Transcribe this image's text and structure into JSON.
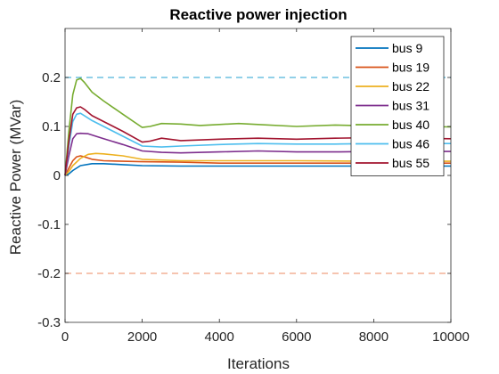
{
  "chart_data": {
    "type": "line",
    "title": "Reactive power injection",
    "xlabel": "Iterations",
    "ylabel": "Reactive Power (MVar)",
    "xlim": [
      0,
      10000
    ],
    "ylim": [
      -0.3,
      0.3
    ],
    "xticks": [
      0,
      2000,
      4000,
      6000,
      8000,
      10000
    ],
    "xtick_labels": [
      "0",
      "2000",
      "4000",
      "6000",
      "8000",
      "10000"
    ],
    "yticks": [
      -0.3,
      -0.2,
      -0.1,
      0,
      0.1,
      0.2
    ],
    "ytick_labels": [
      "-0.3",
      "-0.2",
      "-0.1",
      "0",
      "0.1",
      "0.2"
    ],
    "grid": false,
    "legend_position": "top-right",
    "reference_lines": [
      {
        "y": 0.2,
        "color": "#4fb3d9",
        "style": "dashed"
      },
      {
        "y": -0.2,
        "color": "#f0a080",
        "style": "dashed"
      }
    ],
    "series": [
      {
        "name": "bus 9",
        "color": "#0072BD",
        "x": [
          0,
          100,
          200,
          400,
          700,
          1000,
          1500,
          2000,
          3000,
          4000,
          6000,
          8000,
          10000
        ],
        "y": [
          0,
          0.003,
          0.01,
          0.02,
          0.024,
          0.024,
          0.022,
          0.02,
          0.019,
          0.019,
          0.019,
          0.019,
          0.019
        ]
      },
      {
        "name": "bus 19",
        "color": "#D95319",
        "x": [
          0,
          100,
          200,
          300,
          400,
          500,
          700,
          1000,
          2000,
          3000,
          4000,
          6000,
          8000,
          10000
        ],
        "y": [
          0,
          0.015,
          0.03,
          0.038,
          0.04,
          0.038,
          0.033,
          0.03,
          0.028,
          0.027,
          0.025,
          0.025,
          0.025,
          0.025
        ]
      },
      {
        "name": "bus 22",
        "color": "#EDB120",
        "x": [
          0,
          100,
          200,
          400,
          600,
          800,
          1000,
          1500,
          2000,
          3000,
          4000,
          6000,
          8000,
          10000
        ],
        "y": [
          0,
          0.008,
          0.02,
          0.035,
          0.043,
          0.045,
          0.044,
          0.04,
          0.033,
          0.03,
          0.03,
          0.03,
          0.029,
          0.029
        ]
      },
      {
        "name": "bus 31",
        "color": "#7E2F8E",
        "x": [
          0,
          100,
          200,
          300,
          400,
          600,
          800,
          1000,
          1500,
          2000,
          2500,
          3000,
          4000,
          5000,
          6000,
          7000,
          8000,
          9000,
          10000
        ],
        "y": [
          0,
          0.04,
          0.075,
          0.085,
          0.086,
          0.085,
          0.08,
          0.075,
          0.063,
          0.05,
          0.047,
          0.046,
          0.048,
          0.05,
          0.048,
          0.048,
          0.049,
          0.049,
          0.049
        ]
      },
      {
        "name": "bus 40",
        "color": "#77AC30",
        "x": [
          0,
          100,
          200,
          300,
          400,
          500,
          700,
          1000,
          1500,
          2000,
          2200,
          2500,
          3000,
          3500,
          4000,
          4500,
          5000,
          6000,
          7000,
          8000,
          9000,
          10000
        ],
        "y": [
          0,
          0.09,
          0.165,
          0.195,
          0.198,
          0.19,
          0.17,
          0.152,
          0.125,
          0.098,
          0.1,
          0.106,
          0.105,
          0.102,
          0.104,
          0.106,
          0.104,
          0.1,
          0.103,
          0.101,
          0.1,
          0.099
        ]
      },
      {
        "name": "bus 46",
        "color": "#4DBEEE",
        "x": [
          0,
          100,
          200,
          300,
          400,
          500,
          700,
          1000,
          1500,
          2000,
          2500,
          3000,
          4000,
          5000,
          6000,
          7000,
          8000,
          9000,
          10000
        ],
        "y": [
          0,
          0.06,
          0.11,
          0.125,
          0.127,
          0.122,
          0.112,
          0.1,
          0.08,
          0.06,
          0.058,
          0.06,
          0.063,
          0.065,
          0.064,
          0.064,
          0.065,
          0.065,
          0.065
        ]
      },
      {
        "name": "bus 55",
        "color": "#A2142F",
        "x": [
          0,
          100,
          200,
          300,
          400,
          500,
          700,
          1000,
          1500,
          2000,
          2200,
          2500,
          3000,
          4000,
          5000,
          6000,
          7000,
          8000,
          9000,
          10000
        ],
        "y": [
          0,
          0.07,
          0.125,
          0.138,
          0.14,
          0.135,
          0.122,
          0.11,
          0.09,
          0.068,
          0.07,
          0.076,
          0.071,
          0.074,
          0.076,
          0.074,
          0.076,
          0.077,
          0.076,
          0.075
        ]
      }
    ]
  }
}
